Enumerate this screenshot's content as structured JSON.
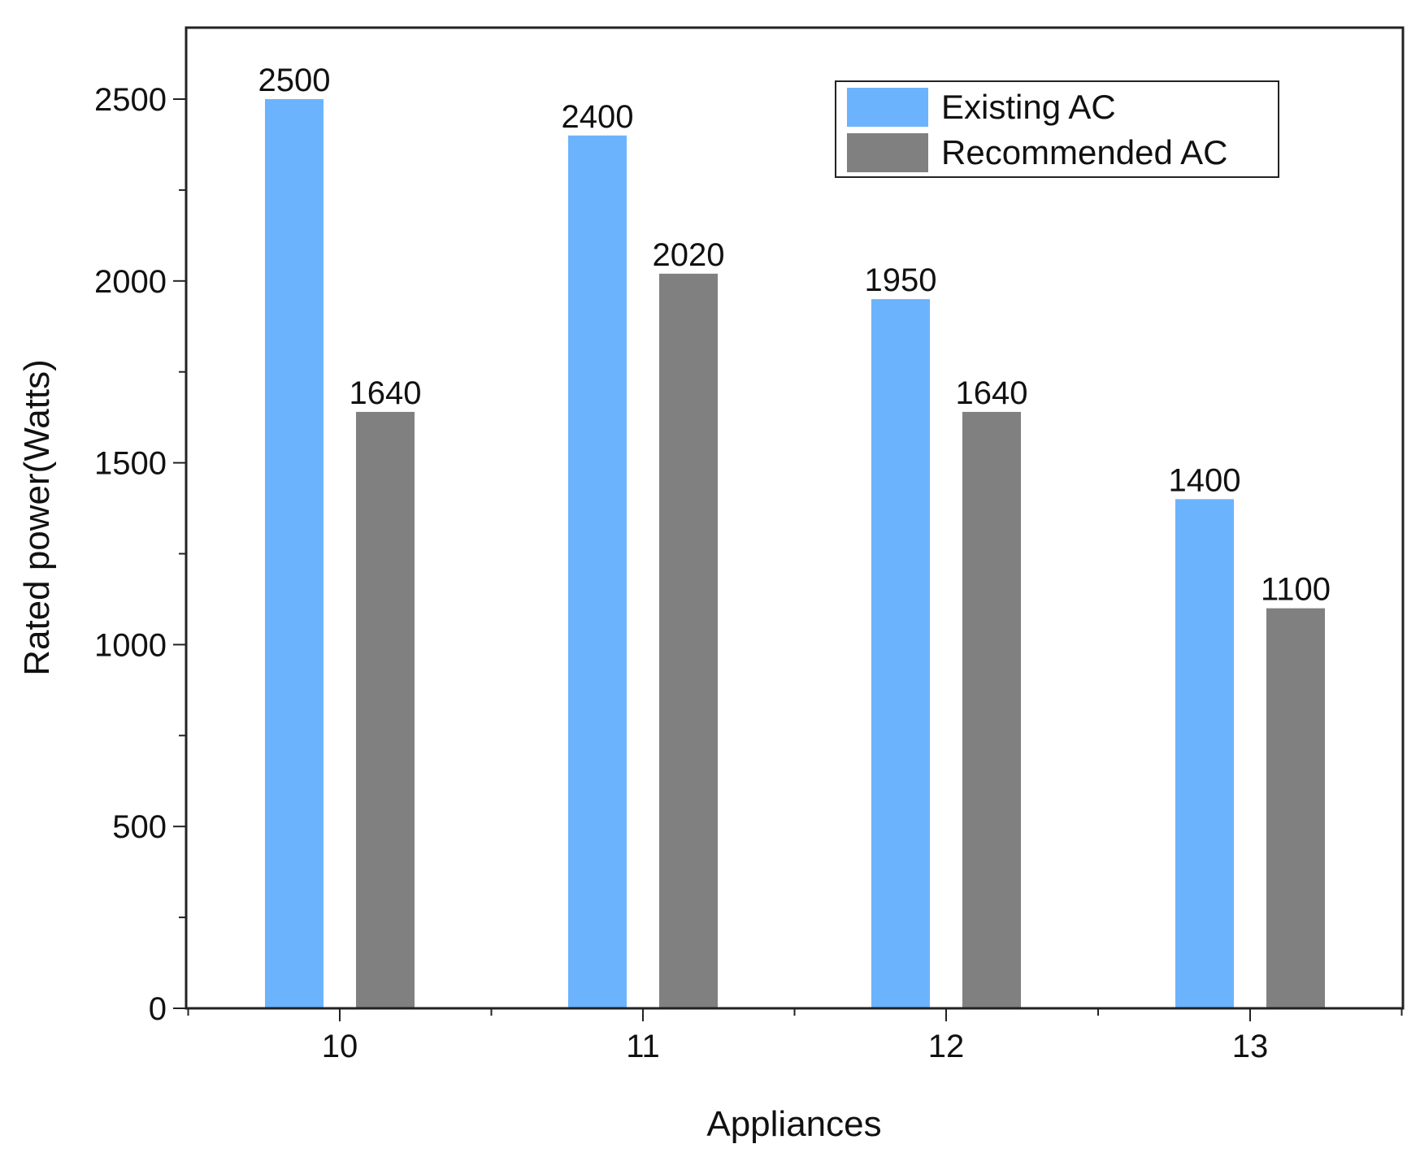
{
  "chart_data": {
    "type": "bar",
    "title": "",
    "xlabel": "Appliances",
    "ylabel": "Rated power(Watts)",
    "categories": [
      "10",
      "11",
      "12",
      "13"
    ],
    "ylim": [
      0,
      2700
    ],
    "yticks": [
      0,
      500,
      1000,
      1500,
      2000,
      2500
    ],
    "yticks_labels": [
      "0",
      "500",
      "1000",
      "1500",
      "2000",
      "2500"
    ],
    "grid": false,
    "legend_position": "top-right",
    "series": [
      {
        "name": "Existing AC",
        "color": "#6cb3fd",
        "values": [
          2500,
          2400,
          1950,
          1400
        ],
        "labels": [
          "2500",
          "2400",
          "1950",
          "1400"
        ]
      },
      {
        "name": "Recommended AC",
        "color": "#808080",
        "values": [
          1640,
          2020,
          1640,
          1100
        ],
        "labels": [
          "1640",
          "2020",
          "1640",
          "1100"
        ]
      }
    ]
  }
}
